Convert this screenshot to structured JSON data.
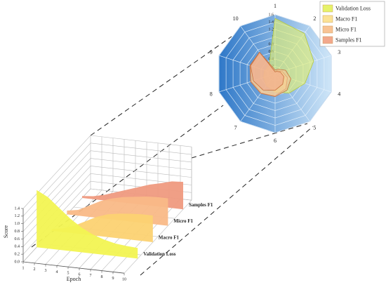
{
  "chart_data": [
    {
      "type": "area3d",
      "xlabel": "Epoch",
      "ylabel": "Score",
      "x": [
        1,
        2,
        3,
        4,
        5,
        6,
        7,
        8,
        9,
        10
      ],
      "xlim": [
        1,
        10
      ],
      "ylim": [
        0,
        1.4
      ],
      "yticks": [
        {
          "value": 0,
          "label": "0.0"
        },
        0.2,
        0.4,
        0.6,
        0.8,
        {
          "value": 1,
          "label": "1.0"
        },
        1.2,
        1.4
      ],
      "grid": true,
      "series": [
        {
          "name": "Validation Loss",
          "color": "#f2f452",
          "values": [
            1.5,
            1.35,
            1.1,
            0.85,
            0.65,
            0.5,
            0.4,
            0.33,
            0.3,
            0.28
          ]
        },
        {
          "name": "Macro F1",
          "color": "#fcd272",
          "values": [
            0.05,
            0.1,
            0.2,
            0.35,
            0.5,
            0.6,
            0.65,
            0.68,
            0.7,
            0.7
          ]
        },
        {
          "name": "Micro F1",
          "color": "#f9b987",
          "values": [
            0.1,
            0.15,
            0.3,
            0.45,
            0.55,
            0.62,
            0.66,
            0.7,
            0.72,
            0.72
          ]
        },
        {
          "name": "Samples F1",
          "color": "#ef9a80",
          "values": [
            0.05,
            0.08,
            0.15,
            0.25,
            0.35,
            0.45,
            0.55,
            0.62,
            0.7,
            0.72
          ]
        }
      ]
    },
    {
      "type": "radar",
      "categories": [
        "1",
        "2",
        "3",
        "4",
        "5",
        "6",
        "7",
        "8",
        "9",
        "10"
      ],
      "rlim": [
        0,
        1.6
      ],
      "rticks": [
        0,
        0.2,
        0.4,
        0.6,
        0.8,
        1,
        1.2,
        1.4,
        1.6
      ],
      "legend": "upper right",
      "series": [
        {
          "name": "Validation Loss",
          "color": "#e6f26a",
          "values": [
            1.5,
            1.35,
            1.1,
            0.85,
            0.65,
            0.5,
            0.4,
            0.33,
            0.3,
            0.28
          ]
        },
        {
          "name": "Macro F1",
          "color": "#fbe296",
          "values": [
            0.05,
            0.1,
            0.2,
            0.35,
            0.5,
            0.6,
            0.65,
            0.68,
            0.7,
            0.7
          ]
        },
        {
          "name": "Micro F1",
          "color": "#f8c394",
          "values": [
            0.1,
            0.15,
            0.3,
            0.45,
            0.55,
            0.62,
            0.66,
            0.7,
            0.72,
            0.72
          ]
        },
        {
          "name": "Samples F1",
          "color": "#f2a88c",
          "values": [
            0.05,
            0.08,
            0.15,
            0.25,
            0.35,
            0.45,
            0.55,
            0.62,
            0.7,
            0.72
          ]
        }
      ]
    }
  ]
}
